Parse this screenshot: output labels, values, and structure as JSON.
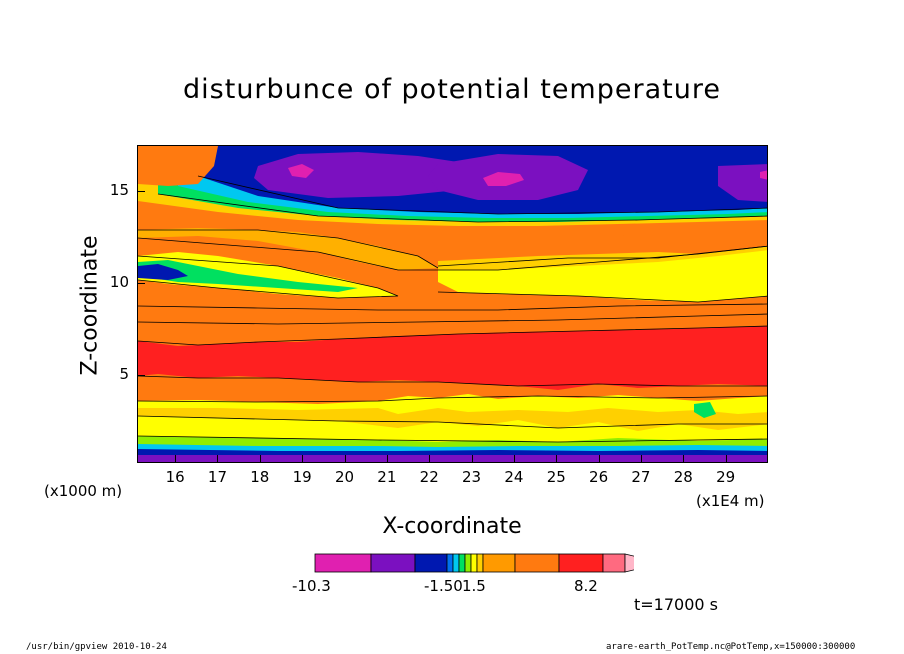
{
  "chart_data": {
    "type": "heatmap",
    "title": "disturbunce of potential temperature",
    "xlabel": "X-coordinate",
    "ylabel": "Z-coordinate",
    "x_unit": "(x1E4 m)",
    "y_unit": "(x1000 m)",
    "x_ticks": [
      "16",
      "17",
      "18",
      "19",
      "20",
      "21",
      "22",
      "23",
      "24",
      "25",
      "26",
      "27",
      "28",
      "29"
    ],
    "y_ticks": [
      "5",
      "10",
      "15"
    ],
    "xlim": [
      15.1,
      30
    ],
    "ylim": [
      0.2,
      17.5
    ],
    "colorbar": {
      "labels": [
        "-10.3",
        "-1.50",
        "1.5",
        "8.2"
      ],
      "colors": [
        "#e020b0",
        "#7b10c0",
        "#0018b0",
        "#0070f0",
        "#00c8f0",
        "#00e060",
        "#90ee00",
        "#ffff00",
        "#ffd000",
        "#ff9a00",
        "#ff7a10",
        "#ff2020",
        "#ff6a80",
        "#ffb6c8"
      ]
    },
    "time_label": "t=17000 s"
  },
  "footer": {
    "left": "/usr/bin/gpview   2010-10-24",
    "right": "arare-earth_PotTemp.nc@PotTemp,x=150000:300000"
  }
}
